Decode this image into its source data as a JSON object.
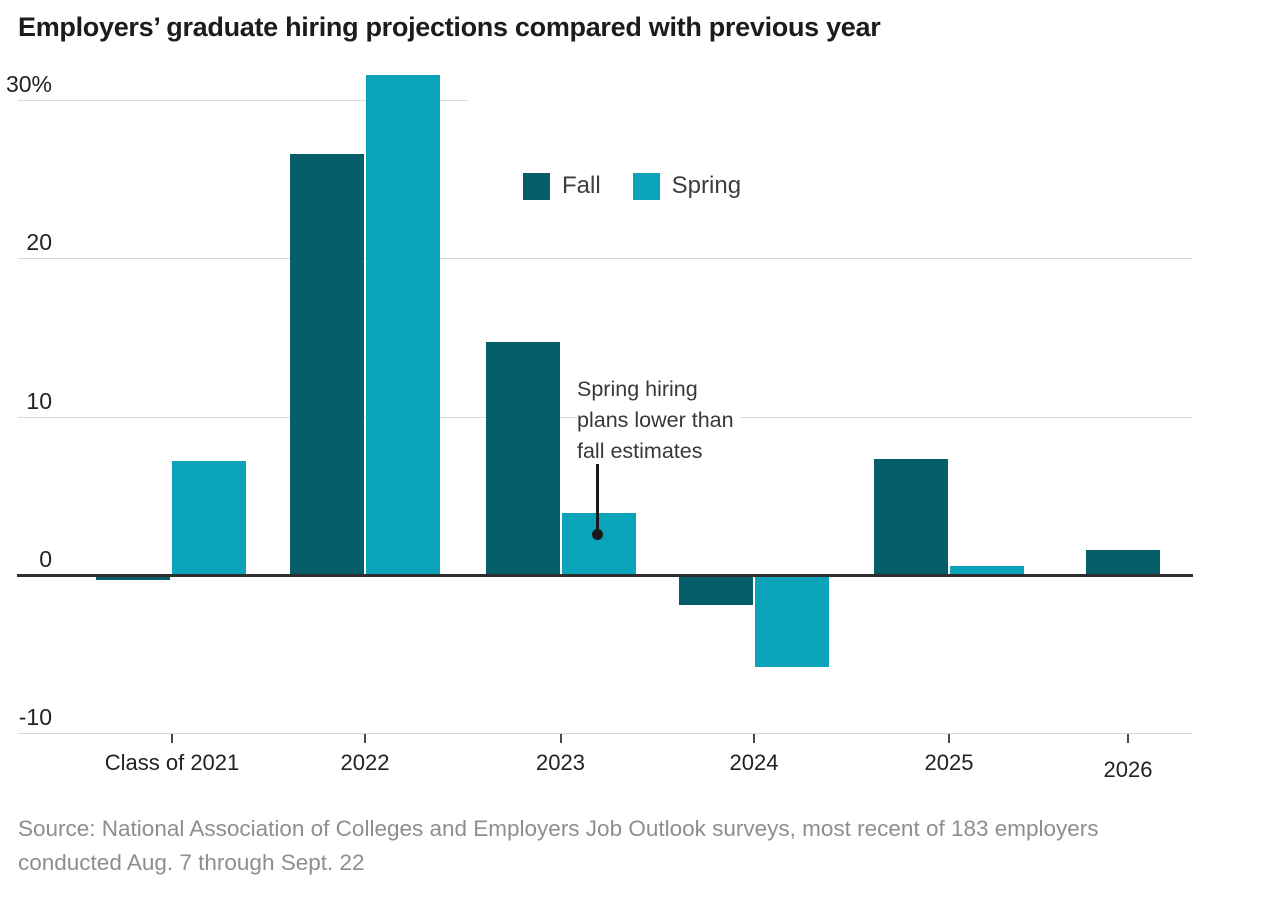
{
  "title": "Employers’ graduate hiring projections compared with previous year",
  "annotation": {
    "text": "Spring hiring\nplans lower than\nfall estimates"
  },
  "source": {
    "line1": "Source: National Association of Colleges and Employers Job Outlook surveys, most recent of 183 employers",
    "line2": "conducted Aug. 7 through Sept. 22"
  },
  "chart_data": {
    "type": "bar",
    "title": "Employers’ graduate hiring projections compared with previous year",
    "categories": [
      "Class of 2021",
      "2022",
      "2023",
      "2024",
      "2025",
      "2026"
    ],
    "series": [
      {
        "name": "Fall",
        "color": "#055E69",
        "values": [
          -0.3,
          26.6,
          14.7,
          -1.9,
          7.3,
          1.6
        ]
      },
      {
        "name": "Spring",
        "color": "#0AA3BA",
        "values": [
          7.2,
          31.6,
          3.9,
          -5.8,
          0.6,
          null
        ]
      }
    ],
    "yticks": [
      {
        "value": 30,
        "label": "30%"
      },
      {
        "value": 20,
        "label": "20"
      },
      {
        "value": 10,
        "label": "10"
      },
      {
        "value": 0,
        "label": "0"
      },
      {
        "value": -10,
        "label": "-10"
      }
    ],
    "ylim": [
      -10,
      32
    ],
    "unit": "%",
    "grid": true,
    "legend_position": "top-center-inside",
    "xlabel": "",
    "ylabel": ""
  }
}
